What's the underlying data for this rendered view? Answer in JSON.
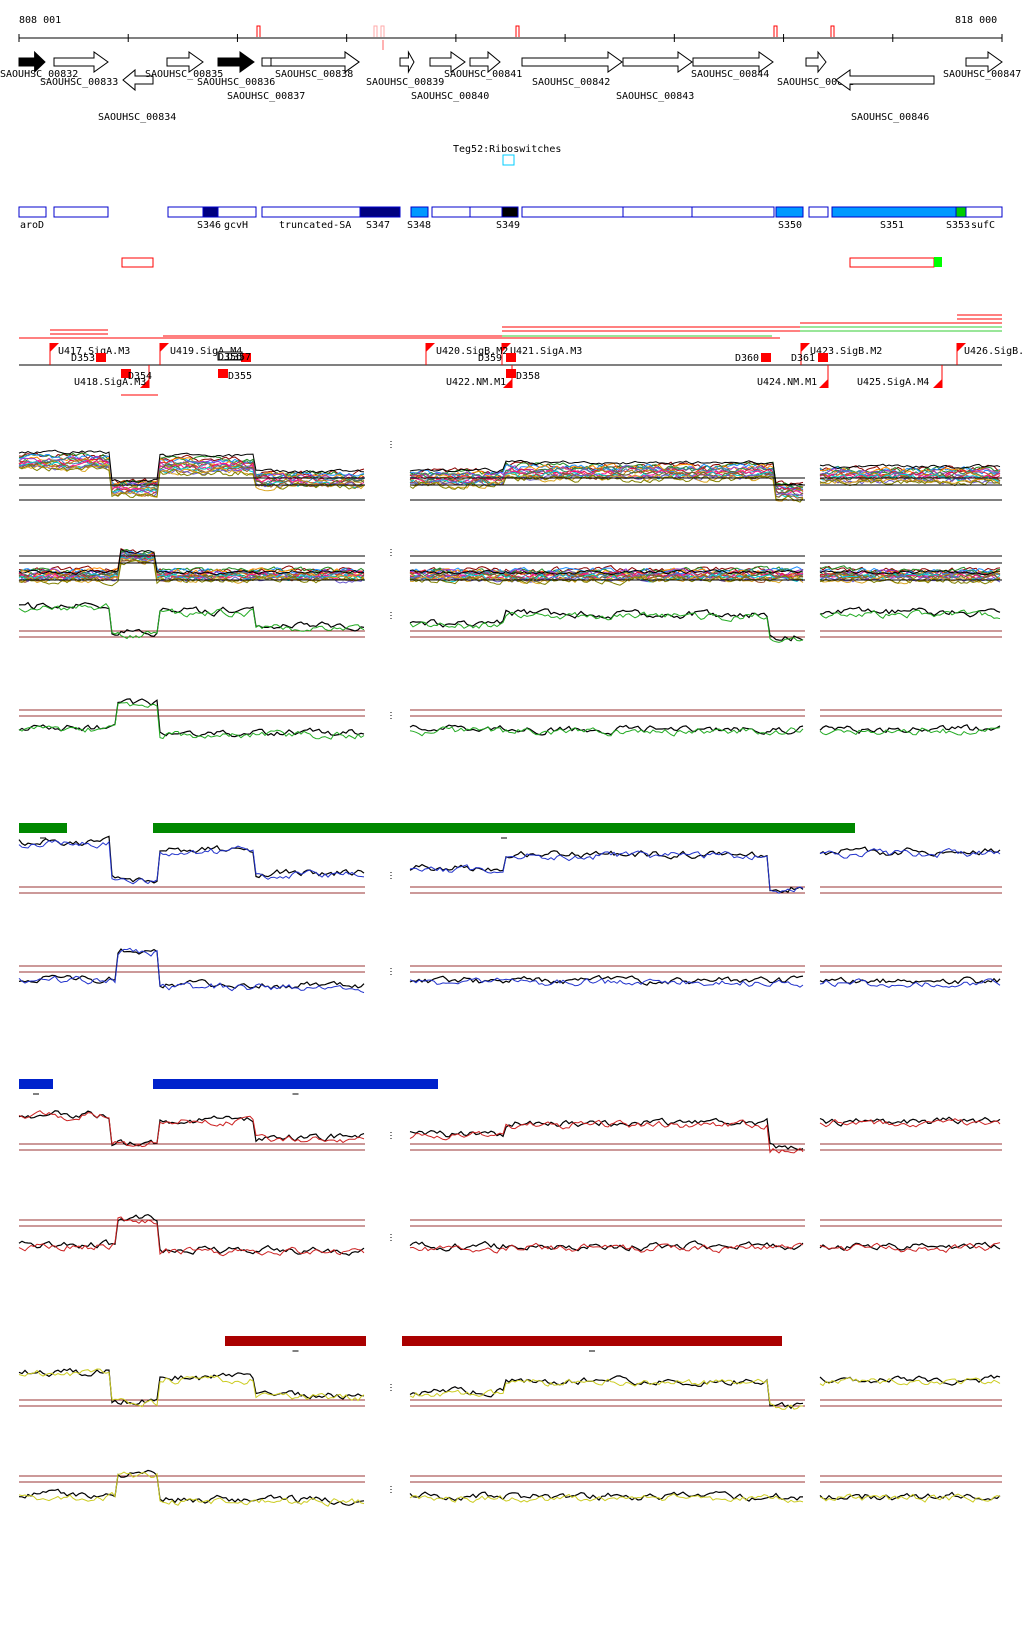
{
  "coords": {
    "start": "808 001",
    "end": "818 000"
  },
  "genes_top": [
    {
      "label": "SAOUHSC_00832"
    },
    {
      "label": "SAOUHSC_00833"
    },
    {
      "label": "SAOUHSC_00834"
    },
    {
      "label": "SAOUHSC_00835"
    },
    {
      "label": "SAOUHSC_00836"
    },
    {
      "label": "SAOUHSC_00837"
    },
    {
      "label": "SAOUHSC_00838"
    },
    {
      "label": "SAOUHSC_00839"
    },
    {
      "label": "SAOUHSC_00840"
    },
    {
      "label": "SAOUHSC_00841"
    },
    {
      "label": "SAOUHSC_00842"
    },
    {
      "label": "SAOUHSC_00843"
    },
    {
      "label": "SAOUHSC_00844"
    },
    {
      "label": "SAOUHSC_00845"
    },
    {
      "label": "SAOUHSC_00846"
    },
    {
      "label": "SAOUHSC_00847"
    }
  ],
  "riboswitch": {
    "label": "Teg52:Riboswitches"
  },
  "feature_track": [
    {
      "label": "aroD"
    },
    {
      "label": "S346"
    },
    {
      "label": "gcvH"
    },
    {
      "label": "truncated-SA"
    },
    {
      "label": "S347"
    },
    {
      "label": "S348"
    },
    {
      "label": "S349"
    },
    {
      "label": "S350"
    },
    {
      "label": "S351"
    },
    {
      "label": "S353"
    },
    {
      "label": "sufC"
    }
  ],
  "promoters": [
    {
      "label": "U417.SigA.M3"
    },
    {
      "label": "U418.SigA.M3"
    },
    {
      "label": "U419.SigA.M4"
    },
    {
      "label": "U420.SigB.M2"
    },
    {
      "label": "U421.SigA.M3"
    },
    {
      "label": "U422.NM.M1"
    },
    {
      "label": "U423.SigB.M2"
    },
    {
      "label": "U424.NM.M1"
    },
    {
      "label": "U425.SigA.M4"
    },
    {
      "label": "U426.SigB."
    }
  ],
  "terminators": [
    {
      "label": "D353"
    },
    {
      "label": "D354"
    },
    {
      "label": "D355"
    },
    {
      "label": "D356"
    },
    {
      "label": "D357"
    },
    {
      "label": "D358"
    },
    {
      "label": "D359"
    },
    {
      "label": "D360"
    },
    {
      "label": "D361"
    }
  ],
  "colors": {
    "gene_fill": "#000000",
    "feature_outline": "#0000cc",
    "feature_dark": "#000080",
    "feature_light": "#0099ff",
    "feature_green": "#00cc00",
    "promoter_red": "#ff0000",
    "green_bar": "#008800",
    "blue_bar": "#0022cc",
    "red_bar": "#aa0000",
    "threshold_line": "#993333"
  },
  "icons": {
    "promoter_marker": "flag-icon",
    "terminator_marker": "square-icon"
  }
}
